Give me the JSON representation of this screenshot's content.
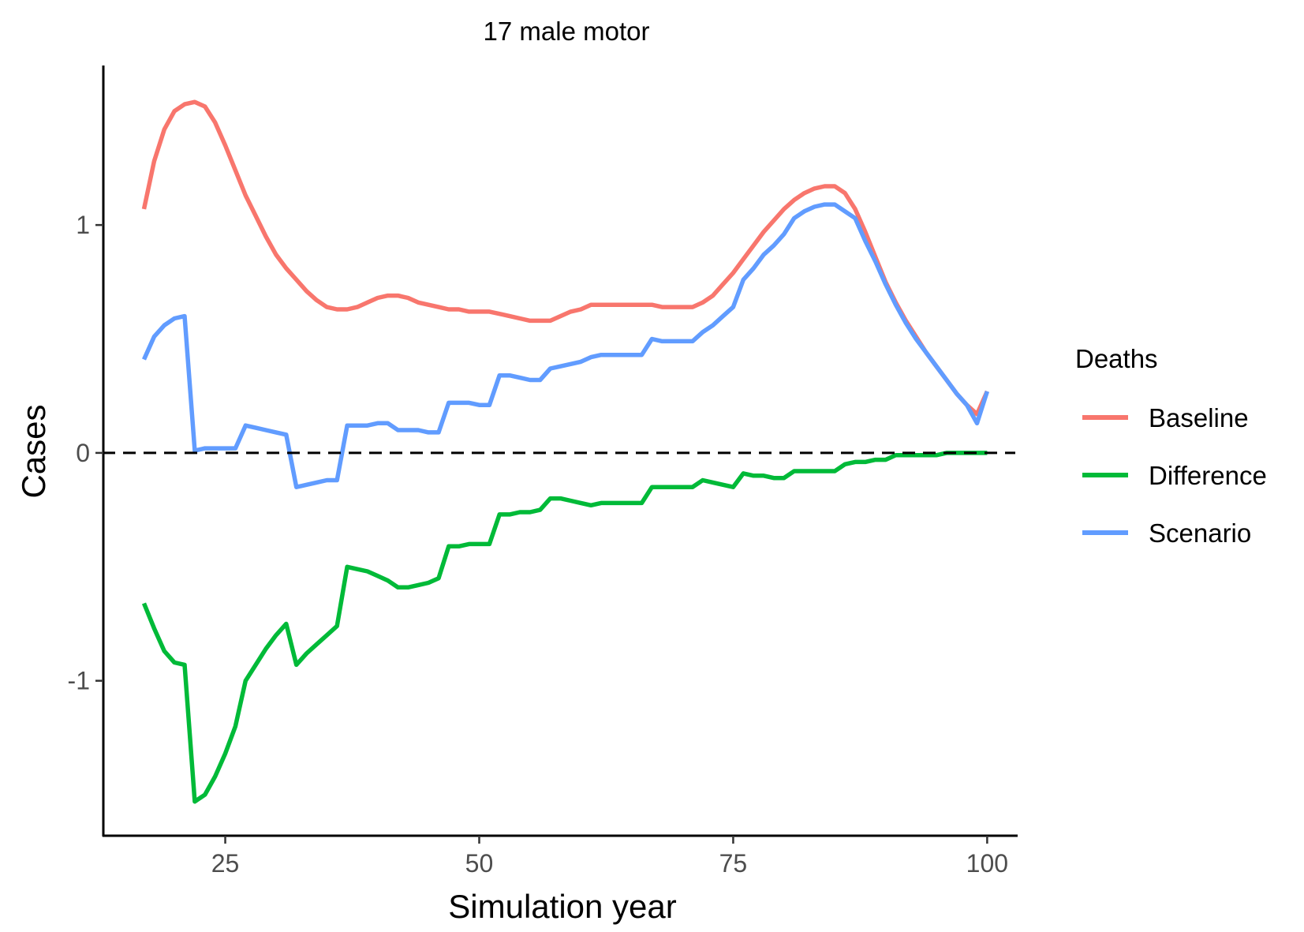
{
  "chart_data": {
    "type": "line",
    "title": "17 male motor",
    "xlabel": "Simulation year",
    "ylabel": "Cases",
    "xlim": [
      13,
      103
    ],
    "ylim": [
      -1.68,
      1.7
    ],
    "x_ticks": [
      25,
      50,
      75,
      100
    ],
    "x_tick_labels": [
      "25",
      "50",
      "75",
      "100"
    ],
    "y_ticks": [
      -1,
      0,
      1
    ],
    "y_tick_labels": [
      "-1",
      "0",
      "1"
    ],
    "grid": false,
    "reference_line": {
      "y": 0,
      "style": "dashed",
      "color": "#000000"
    },
    "legend": {
      "title": "Deaths",
      "position": "right",
      "entries": [
        "Baseline",
        "Difference",
        "Scenario"
      ]
    },
    "series": [
      {
        "name": "Baseline",
        "color": "#F8766D",
        "points": [
          [
            17,
            1.07
          ],
          [
            18,
            1.28
          ],
          [
            19,
            1.42
          ],
          [
            20,
            1.5
          ],
          [
            21,
            1.53
          ],
          [
            22,
            1.54
          ],
          [
            23,
            1.52
          ],
          [
            24,
            1.45
          ],
          [
            25,
            1.35
          ],
          [
            26,
            1.24
          ],
          [
            27,
            1.13
          ],
          [
            28,
            1.04
          ],
          [
            29,
            0.95
          ],
          [
            30,
            0.87
          ],
          [
            31,
            0.81
          ],
          [
            32,
            0.76
          ],
          [
            33,
            0.71
          ],
          [
            34,
            0.67
          ],
          [
            35,
            0.64
          ],
          [
            36,
            0.63
          ],
          [
            37,
            0.63
          ],
          [
            38,
            0.64
          ],
          [
            39,
            0.66
          ],
          [
            40,
            0.68
          ],
          [
            41,
            0.69
          ],
          [
            42,
            0.69
          ],
          [
            43,
            0.68
          ],
          [
            44,
            0.66
          ],
          [
            45,
            0.65
          ],
          [
            46,
            0.64
          ],
          [
            47,
            0.63
          ],
          [
            48,
            0.63
          ],
          [
            49,
            0.62
          ],
          [
            50,
            0.62
          ],
          [
            51,
            0.62
          ],
          [
            52,
            0.61
          ],
          [
            53,
            0.6
          ],
          [
            54,
            0.59
          ],
          [
            55,
            0.58
          ],
          [
            56,
            0.58
          ],
          [
            57,
            0.58
          ],
          [
            58,
            0.6
          ],
          [
            59,
            0.62
          ],
          [
            60,
            0.63
          ],
          [
            61,
            0.65
          ],
          [
            62,
            0.65
          ],
          [
            63,
            0.65
          ],
          [
            64,
            0.65
          ],
          [
            65,
            0.65
          ],
          [
            66,
            0.65
          ],
          [
            67,
            0.65
          ],
          [
            68,
            0.64
          ],
          [
            69,
            0.64
          ],
          [
            70,
            0.64
          ],
          [
            71,
            0.64
          ],
          [
            72,
            0.66
          ],
          [
            73,
            0.69
          ],
          [
            74,
            0.74
          ],
          [
            75,
            0.79
          ],
          [
            76,
            0.85
          ],
          [
            77,
            0.91
          ],
          [
            78,
            0.97
          ],
          [
            79,
            1.02
          ],
          [
            80,
            1.07
          ],
          [
            81,
            1.11
          ],
          [
            82,
            1.14
          ],
          [
            83,
            1.16
          ],
          [
            84,
            1.17
          ],
          [
            85,
            1.17
          ],
          [
            86,
            1.14
          ],
          [
            87,
            1.07
          ],
          [
            88,
            0.97
          ],
          [
            89,
            0.86
          ],
          [
            90,
            0.75
          ],
          [
            91,
            0.66
          ],
          [
            92,
            0.58
          ],
          [
            93,
            0.51
          ],
          [
            94,
            0.44
          ],
          [
            95,
            0.38
          ],
          [
            96,
            0.32
          ],
          [
            97,
            0.26
          ],
          [
            98,
            0.21
          ],
          [
            99,
            0.17
          ],
          [
            100,
            0.27
          ]
        ]
      },
      {
        "name": "Difference",
        "color": "#00BA38",
        "points": [
          [
            17,
            -0.66
          ],
          [
            18,
            -0.77
          ],
          [
            19,
            -0.87
          ],
          [
            20,
            -0.92
          ],
          [
            21,
            -0.93
          ],
          [
            22,
            -1.53
          ],
          [
            23,
            -1.5
          ],
          [
            24,
            -1.42
          ],
          [
            25,
            -1.32
          ],
          [
            26,
            -1.2
          ],
          [
            27,
            -1.0
          ],
          [
            28,
            -0.93
          ],
          [
            29,
            -0.86
          ],
          [
            30,
            -0.8
          ],
          [
            31,
            -0.75
          ],
          [
            32,
            -0.93
          ],
          [
            33,
            -0.88
          ],
          [
            34,
            -0.84
          ],
          [
            35,
            -0.8
          ],
          [
            36,
            -0.76
          ],
          [
            37,
            -0.5
          ],
          [
            38,
            -0.51
          ],
          [
            39,
            -0.52
          ],
          [
            40,
            -0.54
          ],
          [
            41,
            -0.56
          ],
          [
            42,
            -0.59
          ],
          [
            43,
            -0.59
          ],
          [
            44,
            -0.58
          ],
          [
            45,
            -0.57
          ],
          [
            46,
            -0.55
          ],
          [
            47,
            -0.41
          ],
          [
            48,
            -0.41
          ],
          [
            49,
            -0.4
          ],
          [
            50,
            -0.4
          ],
          [
            51,
            -0.4
          ],
          [
            52,
            -0.27
          ],
          [
            53,
            -0.27
          ],
          [
            54,
            -0.26
          ],
          [
            55,
            -0.26
          ],
          [
            56,
            -0.25
          ],
          [
            57,
            -0.2
          ],
          [
            58,
            -0.2
          ],
          [
            59,
            -0.21
          ],
          [
            60,
            -0.22
          ],
          [
            61,
            -0.23
          ],
          [
            62,
            -0.22
          ],
          [
            63,
            -0.22
          ],
          [
            64,
            -0.22
          ],
          [
            65,
            -0.22
          ],
          [
            66,
            -0.22
          ],
          [
            67,
            -0.15
          ],
          [
            68,
            -0.15
          ],
          [
            69,
            -0.15
          ],
          [
            70,
            -0.15
          ],
          [
            71,
            -0.15
          ],
          [
            72,
            -0.12
          ],
          [
            73,
            -0.13
          ],
          [
            74,
            -0.14
          ],
          [
            75,
            -0.15
          ],
          [
            76,
            -0.09
          ],
          [
            77,
            -0.1
          ],
          [
            78,
            -0.1
          ],
          [
            79,
            -0.11
          ],
          [
            80,
            -0.11
          ],
          [
            81,
            -0.08
          ],
          [
            82,
            -0.08
          ],
          [
            83,
            -0.08
          ],
          [
            84,
            -0.08
          ],
          [
            85,
            -0.08
          ],
          [
            86,
            -0.05
          ],
          [
            87,
            -0.04
          ],
          [
            88,
            -0.04
          ],
          [
            89,
            -0.03
          ],
          [
            90,
            -0.03
          ],
          [
            91,
            -0.01
          ],
          [
            92,
            -0.01
          ],
          [
            93,
            -0.01
          ],
          [
            94,
            -0.01
          ],
          [
            95,
            -0.01
          ],
          [
            96,
            0.0
          ],
          [
            97,
            0.0
          ],
          [
            98,
            0.0
          ],
          [
            99,
            0.0
          ],
          [
            100,
            0.0
          ]
        ]
      },
      {
        "name": "Scenario",
        "color": "#619CFF",
        "points": [
          [
            17,
            0.41
          ],
          [
            18,
            0.51
          ],
          [
            19,
            0.56
          ],
          [
            20,
            0.59
          ],
          [
            21,
            0.6
          ],
          [
            22,
            0.01
          ],
          [
            23,
            0.02
          ],
          [
            24,
            0.02
          ],
          [
            25,
            0.02
          ],
          [
            26,
            0.02
          ],
          [
            27,
            0.12
          ],
          [
            28,
            0.11
          ],
          [
            29,
            0.1
          ],
          [
            30,
            0.09
          ],
          [
            31,
            0.08
          ],
          [
            32,
            -0.15
          ],
          [
            33,
            -0.14
          ],
          [
            34,
            -0.13
          ],
          [
            35,
            -0.12
          ],
          [
            36,
            -0.12
          ],
          [
            37,
            0.12
          ],
          [
            38,
            0.12
          ],
          [
            39,
            0.12
          ],
          [
            40,
            0.13
          ],
          [
            41,
            0.13
          ],
          [
            42,
            0.1
          ],
          [
            43,
            0.1
          ],
          [
            44,
            0.1
          ],
          [
            45,
            0.09
          ],
          [
            46,
            0.09
          ],
          [
            47,
            0.22
          ],
          [
            48,
            0.22
          ],
          [
            49,
            0.22
          ],
          [
            50,
            0.21
          ],
          [
            51,
            0.21
          ],
          [
            52,
            0.34
          ],
          [
            53,
            0.34
          ],
          [
            54,
            0.33
          ],
          [
            55,
            0.32
          ],
          [
            56,
            0.32
          ],
          [
            57,
            0.37
          ],
          [
            58,
            0.38
          ],
          [
            59,
            0.39
          ],
          [
            60,
            0.4
          ],
          [
            61,
            0.42
          ],
          [
            62,
            0.43
          ],
          [
            63,
            0.43
          ],
          [
            64,
            0.43
          ],
          [
            65,
            0.43
          ],
          [
            66,
            0.43
          ],
          [
            67,
            0.5
          ],
          [
            68,
            0.49
          ],
          [
            69,
            0.49
          ],
          [
            70,
            0.49
          ],
          [
            71,
            0.49
          ],
          [
            72,
            0.53
          ],
          [
            73,
            0.56
          ],
          [
            74,
            0.6
          ],
          [
            75,
            0.64
          ],
          [
            76,
            0.76
          ],
          [
            77,
            0.81
          ],
          [
            78,
            0.87
          ],
          [
            79,
            0.91
          ],
          [
            80,
            0.96
          ],
          [
            81,
            1.03
          ],
          [
            82,
            1.06
          ],
          [
            83,
            1.08
          ],
          [
            84,
            1.09
          ],
          [
            85,
            1.09
          ],
          [
            86,
            1.06
          ],
          [
            87,
            1.03
          ],
          [
            88,
            0.93
          ],
          [
            89,
            0.84
          ],
          [
            90,
            0.74
          ],
          [
            91,
            0.65
          ],
          [
            92,
            0.57
          ],
          [
            93,
            0.5
          ],
          [
            94,
            0.44
          ],
          [
            95,
            0.38
          ],
          [
            96,
            0.32
          ],
          [
            97,
            0.26
          ],
          [
            98,
            0.21
          ],
          [
            99,
            0.13
          ],
          [
            100,
            0.27
          ]
        ]
      }
    ]
  }
}
